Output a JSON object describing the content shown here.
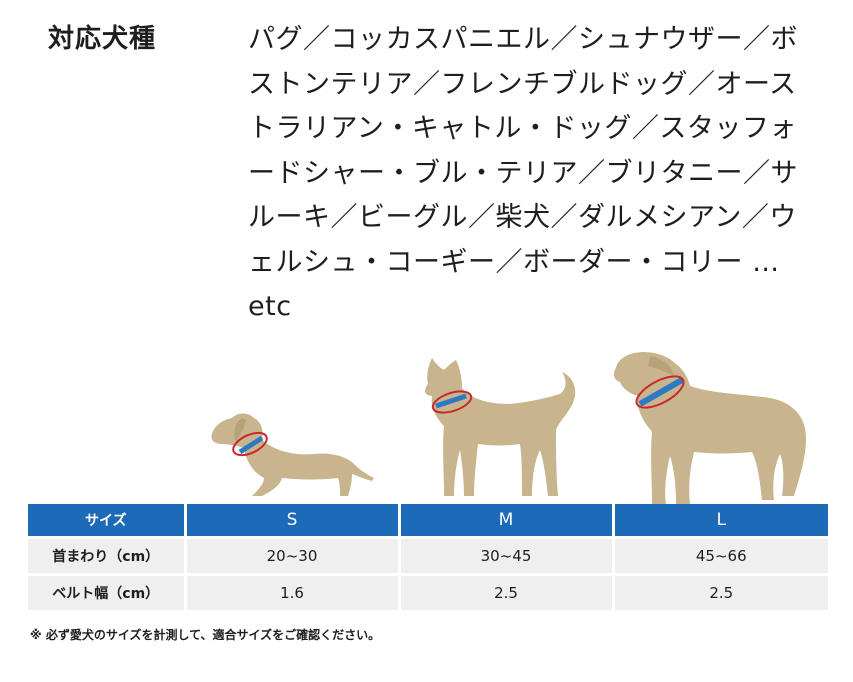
{
  "compatible": {
    "label": "対応犬種",
    "breeds": "パグ／コッカスパニエル／シュナウザー／ボストンテリア／フレンチブルドッグ／オーストラリアン・キャトル・ドッグ／スタッフォードシャー・ブル・テリア／ブリタニー／サルーキ／ビーグル／柴犬／ダルメシアン／ウェルシュ・コーギー／ボーダー・コリー …etc"
  },
  "colors": {
    "header_blue": "#1d6bb8",
    "row_gray": "#efefef",
    "dog_beige": "#c8b58d",
    "collar_blue": "#2f79c4",
    "arrow_red": "#c8282e"
  },
  "illustration": {
    "dogs": [
      "dachshund-small",
      "shiba-medium",
      "large-dog"
    ]
  },
  "table": {
    "header": [
      "サイズ",
      "S",
      "M",
      "L"
    ],
    "rows": [
      {
        "label": "首まわり（cm）",
        "s": "20~30",
        "m": "30~45",
        "l": "45~66"
      },
      {
        "label": "ベルト幅（cm）",
        "s": "1.6",
        "m": "2.5",
        "l": "2.5"
      }
    ]
  },
  "note": "※ 必ず愛犬のサイズを計測して、適合サイズをご確認ください。"
}
